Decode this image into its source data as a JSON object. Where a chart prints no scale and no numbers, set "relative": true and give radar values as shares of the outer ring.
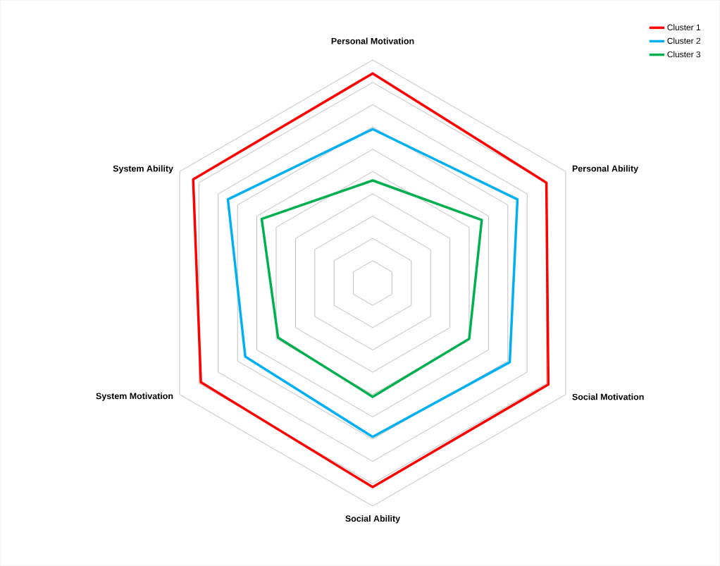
{
  "chart_data": {
    "type": "radar",
    "relative": true,
    "grid": true,
    "legend": "top right",
    "categories": [
      "Personal Motivation",
      "Personal Ability",
      "Social Motivation",
      "Social Ability",
      "System Motivation",
      "System Ability"
    ],
    "series": [
      {
        "name": "Cluster 1",
        "color": "#ff0000",
        "values": [
          0.94,
          0.9,
          0.91,
          0.915,
          0.89,
          0.93
        ]
      },
      {
        "name": "Cluster 2",
        "color": "#00b0f0",
        "values": [
          0.69,
          0.75,
          0.71,
          0.69,
          0.66,
          0.75
        ]
      },
      {
        "name": "Cluster 3",
        "color": "#00b050",
        "values": [
          0.46,
          0.565,
          0.5,
          0.51,
          0.49,
          0.575
        ]
      }
    ]
  }
}
